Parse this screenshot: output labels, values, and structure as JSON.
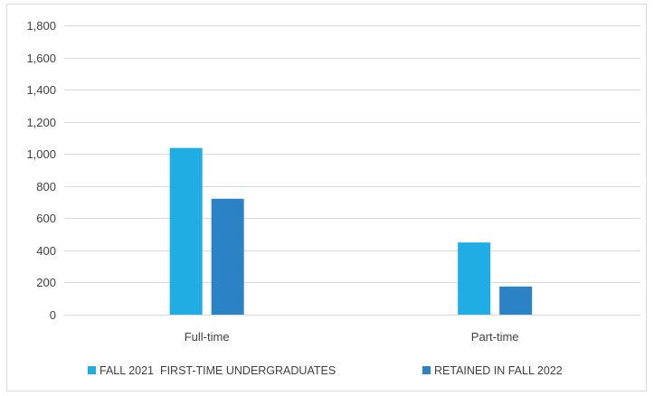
{
  "chart_data": {
    "type": "bar",
    "title": "",
    "xlabel": "",
    "ylabel": "",
    "categories": [
      "Full-time",
      "Part-time"
    ],
    "series": [
      {
        "name": "FALL 2021  FIRST-TIME UNDERGRADUATES",
        "color": "#1fade4",
        "values": [
          1037,
          449
        ]
      },
      {
        "name": "RETAINED IN FALL 2022",
        "color": "#2b83c5",
        "values": [
          721,
          175
        ]
      }
    ],
    "ylim": [
      0,
      1800
    ],
    "yticks": [
      0,
      200,
      400,
      600,
      800,
      1000,
      1200,
      1400,
      1600,
      1800
    ],
    "ytick_labels": [
      "0",
      "200",
      "400",
      "600",
      "800",
      "1,000",
      "1,200",
      "1,400",
      "1,600",
      "1,800"
    ],
    "grid": true,
    "legend": "bottom"
  }
}
